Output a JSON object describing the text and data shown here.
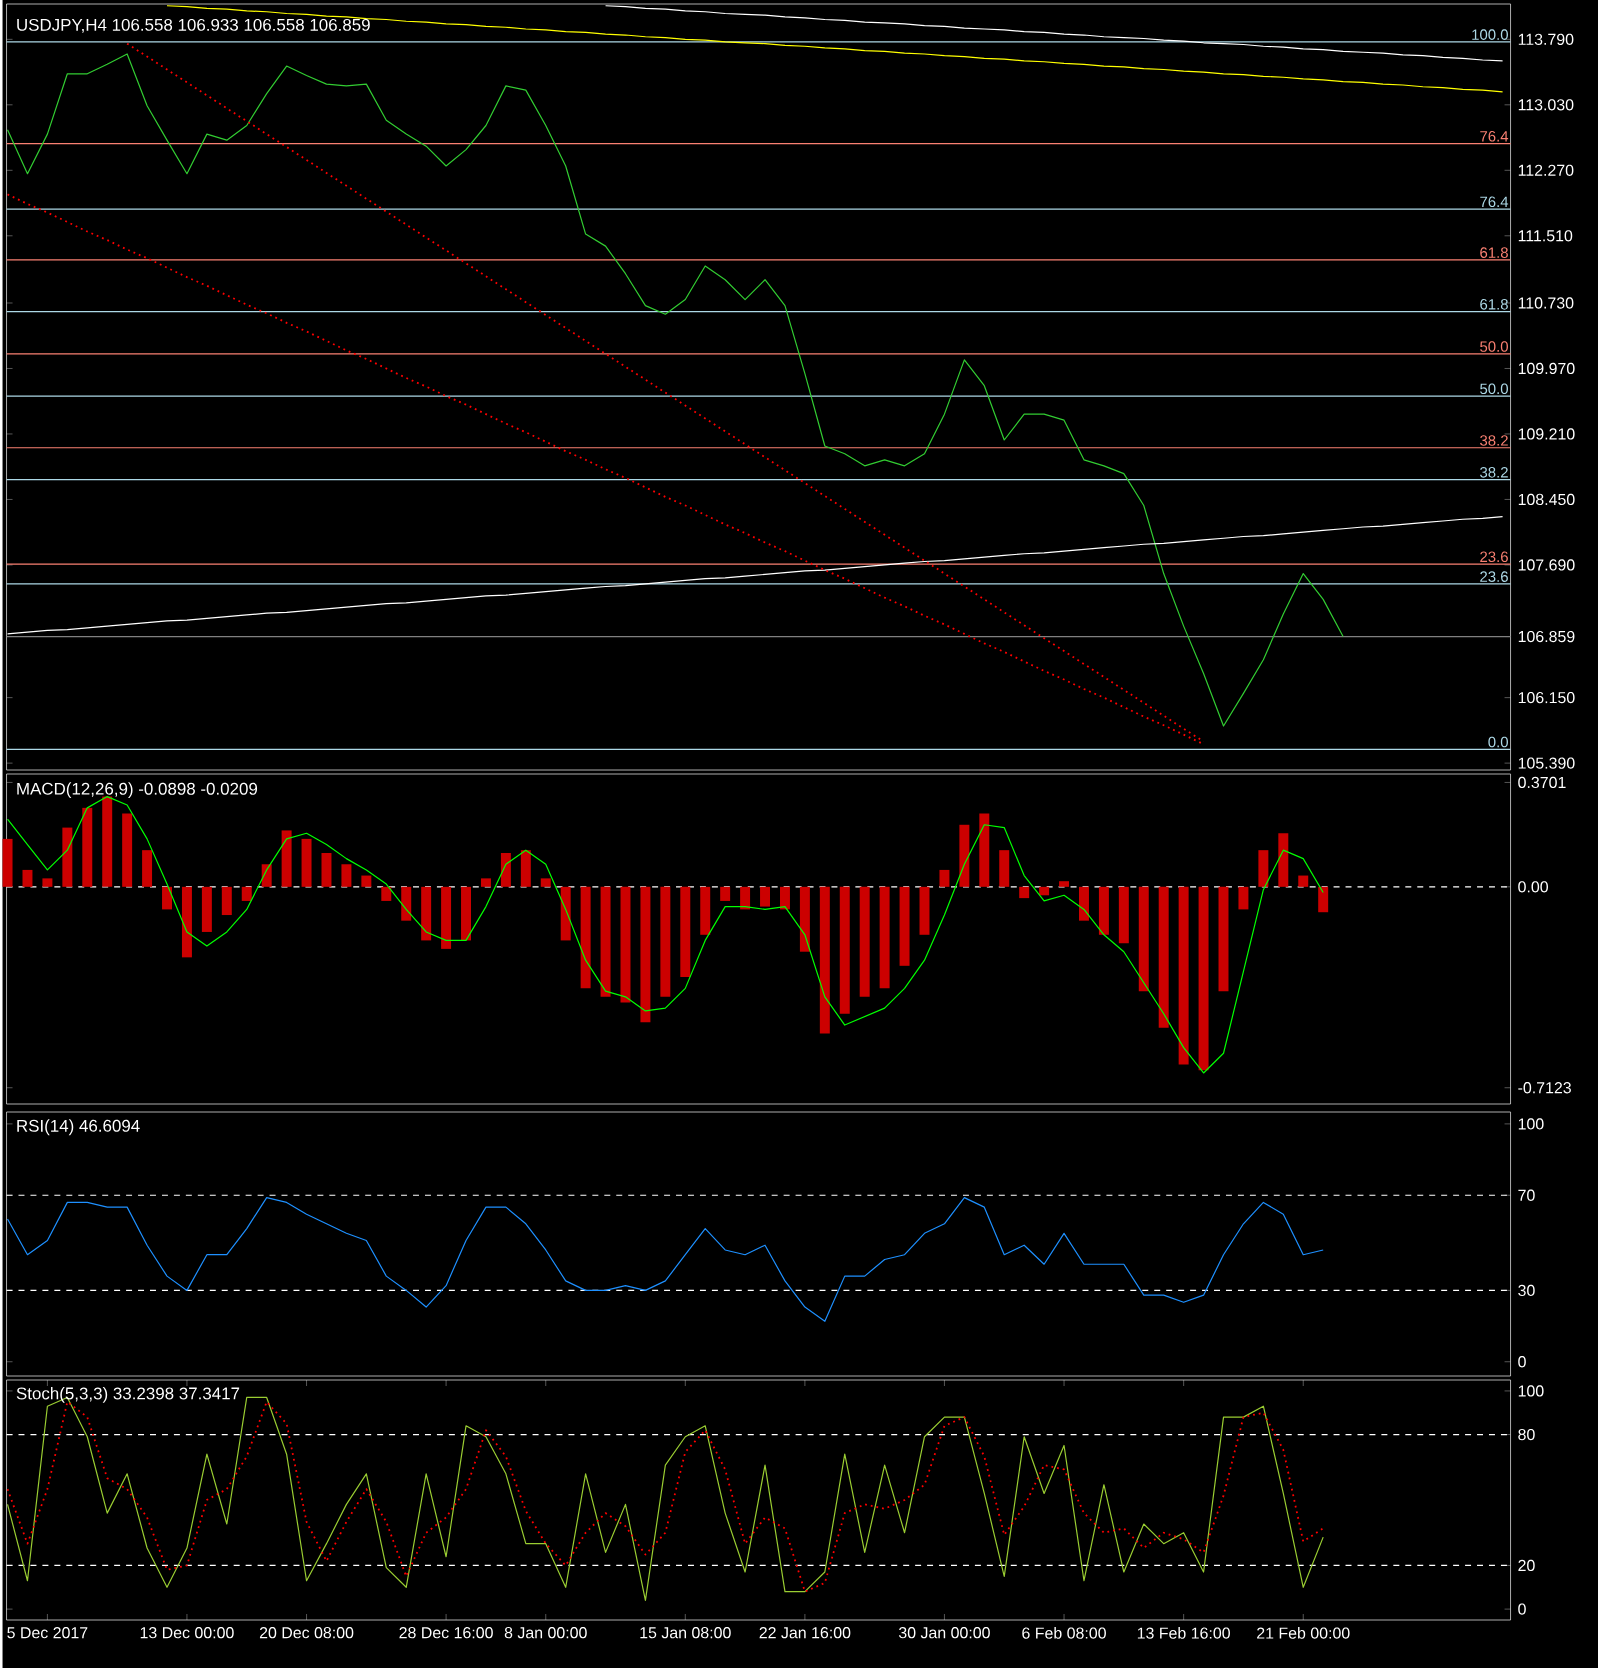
{
  "chart_data": [
    {
      "type": "line",
      "title": "USDJPY,H4  106.558 106.933 106.558 106.859",
      "ylim": [
        105.31,
        114.2
      ],
      "tick_labels": "y",
      "marker": "none",
      "categories": [
        null,
        null,
        null,
        null,
        null,
        null,
        null,
        null,
        null,
        null,
        null,
        null,
        null,
        null,
        null,
        null,
        null,
        null,
        null,
        null,
        null,
        null,
        null,
        null,
        null,
        null,
        null,
        null,
        null,
        null,
        null,
        null,
        null,
        null,
        null,
        null,
        null,
        null,
        null,
        null,
        null,
        null,
        null,
        null,
        null,
        null,
        null,
        null,
        null,
        null,
        null,
        null,
        null,
        null,
        null,
        null,
        null,
        null,
        null,
        null,
        null,
        null,
        null,
        null,
        null,
        null,
        null,
        null,
        null,
        null,
        null,
        null,
        null,
        null,
        null,
        null
      ],
      "yticks": [
        {
          "value": 113.79,
          "label": "113.790"
        },
        {
          "value": 113.03,
          "label": "113.030"
        },
        {
          "value": 112.27,
          "label": "112.270"
        },
        {
          "value": 111.51,
          "label": "111.510"
        },
        {
          "value": 110.73,
          "label": "110.730"
        },
        {
          "value": 109.97,
          "label": "109.970"
        },
        {
          "value": 109.21,
          "label": "109.210"
        },
        {
          "value": 108.45,
          "label": "108.450"
        },
        {
          "value": 107.69,
          "label": "107.690"
        },
        {
          "value": 106.859,
          "label": "106.859"
        },
        {
          "value": 106.15,
          "label": "106.150"
        },
        {
          "value": 105.39,
          "label": "105.390"
        }
      ],
      "ref_lines": [
        {
          "axis": "y",
          "value": 113.76,
          "color": "#add8e6",
          "line_style": "solid"
        },
        {
          "axis": "y",
          "value": 112.58,
          "color": "#fa8072",
          "line_style": "solid"
        },
        {
          "axis": "y",
          "value": 111.82,
          "color": "#add8e6",
          "line_style": "solid"
        },
        {
          "axis": "y",
          "value": 111.23,
          "color": "#fa8072",
          "line_style": "solid"
        },
        {
          "axis": "y",
          "value": 110.63,
          "color": "#add8e6",
          "line_style": "solid"
        },
        {
          "axis": "y",
          "value": 110.14,
          "color": "#fa8072",
          "line_style": "solid"
        },
        {
          "axis": "y",
          "value": 109.65,
          "color": "#add8e6",
          "line_style": "solid"
        },
        {
          "axis": "y",
          "value": 109.05,
          "color": "#fa8072",
          "line_style": "solid"
        },
        {
          "axis": "y",
          "value": 108.68,
          "color": "#add8e6",
          "line_style": "solid"
        },
        {
          "axis": "y",
          "value": 107.7,
          "color": "#fa8072",
          "line_style": "solid"
        },
        {
          "axis": "y",
          "value": 107.47,
          "color": "#add8e6",
          "line_style": "solid"
        },
        {
          "axis": "y",
          "value": 106.859,
          "color": "#808080",
          "line_style": "solid"
        },
        {
          "axis": "y",
          "value": 105.55,
          "color": "#add8e6",
          "line_style": "solid"
        }
      ],
      "annotations": [
        {
          "text": "100.0",
          "y": 113.76
        },
        {
          "text": "76.4",
          "y": 112.58
        },
        {
          "text": "76.4",
          "y": 111.82
        },
        {
          "text": "61.8",
          "y": 111.23
        },
        {
          "text": "61.8",
          "y": 110.63
        },
        {
          "text": "50.0",
          "y": 110.14
        },
        {
          "text": "50.0",
          "y": 109.65
        },
        {
          "text": "38.2",
          "y": 109.05
        },
        {
          "text": "38.2",
          "y": 108.68
        },
        {
          "text": "23.6",
          "y": 107.7
        },
        {
          "text": "23.6",
          "y": 107.47
        },
        {
          "text": "0.0",
          "y": 105.55
        }
      ],
      "series": [
        {
          "color": "#32cd32",
          "values": [
            112.74,
            112.23,
            112.69,
            113.39,
            113.39,
            113.5,
            113.62,
            113.02,
            112.62,
            112.23,
            112.69,
            112.62,
            112.79,
            113.16,
            113.48,
            113.37,
            113.27,
            113.25,
            113.27,
            112.85,
            112.69,
            112.55,
            112.32,
            112.51,
            112.79,
            113.25,
            113.2,
            112.79,
            112.32,
            111.53,
            111.39,
            111.07,
            110.7,
            110.6,
            110.77,
            111.16,
            111.0,
            110.77,
            111.0,
            110.7,
            109.91,
            109.07,
            108.98,
            108.84,
            108.91,
            108.84,
            108.98,
            109.44,
            110.07,
            109.77,
            109.14,
            109.44,
            109.44,
            109.37,
            108.91,
            108.84,
            108.75,
            108.38,
            107.59,
            106.98,
            106.43,
            105.82,
            106.2,
            106.59,
            107.12,
            107.59,
            107.29,
            106.86,
            null,
            null,
            null,
            null,
            null,
            null,
            null,
            null
          ]
        },
        {
          "color": "#ffff00",
          "line_style": "solid",
          "values": [
            null,
            null,
            null,
            null,
            null,
            null,
            null,
            null,
            114.18,
            114.17,
            114.15,
            114.14,
            114.12,
            114.11,
            114.09,
            114.08,
            114.06,
            114.05,
            114.03,
            114.02,
            114.0,
            113.99,
            113.97,
            113.96,
            113.94,
            113.93,
            113.91,
            113.9,
            113.88,
            113.87,
            113.85,
            113.84,
            113.82,
            113.81,
            113.79,
            113.78,
            113.76,
            113.75,
            113.74,
            113.72,
            113.71,
            113.69,
            113.68,
            113.66,
            113.65,
            113.63,
            113.62,
            113.6,
            113.59,
            113.57,
            113.56,
            113.54,
            113.53,
            113.51,
            113.5,
            113.48,
            113.47,
            113.45,
            113.44,
            113.42,
            113.41,
            113.39,
            113.38,
            113.36,
            113.35,
            113.33,
            113.32,
            113.3,
            113.29,
            113.27,
            113.26,
            113.24,
            113.23,
            113.21,
            113.2,
            113.18
          ]
        },
        {
          "color": "#ffffff",
          "line_style": "solid",
          "values": [
            null,
            null,
            null,
            null,
            null,
            null,
            null,
            null,
            null,
            null,
            null,
            null,
            null,
            null,
            null,
            null,
            null,
            null,
            null,
            null,
            null,
            null,
            null,
            null,
            null,
            null,
            null,
            null,
            null,
            null,
            114.18,
            114.17,
            114.15,
            114.14,
            114.12,
            114.11,
            114.09,
            114.08,
            114.07,
            114.05,
            114.04,
            114.02,
            114.01,
            113.99,
            113.98,
            113.97,
            113.95,
            113.94,
            113.92,
            113.91,
            113.9,
            113.88,
            113.87,
            113.85,
            113.84,
            113.82,
            113.81,
            113.8,
            113.78,
            113.77,
            113.75,
            113.74,
            113.73,
            113.71,
            113.7,
            113.68,
            113.67,
            113.65,
            113.64,
            113.63,
            113.61,
            113.6,
            113.58,
            113.57,
            113.55,
            113.54
          ]
        },
        {
          "color": "#ffffff",
          "line_style": "solid",
          "values": [
            106.89,
            106.91,
            106.93,
            106.94,
            106.96,
            106.98,
            107.0,
            107.02,
            107.04,
            107.05,
            107.07,
            107.09,
            107.11,
            107.13,
            107.14,
            107.16,
            107.18,
            107.2,
            107.22,
            107.24,
            107.25,
            107.27,
            107.29,
            107.31,
            107.33,
            107.34,
            107.36,
            107.38,
            107.4,
            107.42,
            107.44,
            107.45,
            107.47,
            107.49,
            107.51,
            107.53,
            107.54,
            107.56,
            107.58,
            107.6,
            107.62,
            107.63,
            107.65,
            107.67,
            107.69,
            107.71,
            107.73,
            107.74,
            107.76,
            107.78,
            107.8,
            107.82,
            107.83,
            107.85,
            107.87,
            107.89,
            107.91,
            107.93,
            107.94,
            107.96,
            107.98,
            108.0,
            108.02,
            108.03,
            108.05,
            108.07,
            108.09,
            108.11,
            108.13,
            108.14,
            108.16,
            108.18,
            108.2,
            108.22,
            108.23,
            108.25
          ]
        },
        {
          "color": "#ff0000",
          "line_style": "dotted",
          "values": [
            null,
            null,
            null,
            null,
            null,
            null,
            113.74,
            113.59,
            113.44,
            113.29,
            113.14,
            112.99,
            112.84,
            112.69,
            112.54,
            112.39,
            112.24,
            112.09,
            111.94,
            111.79,
            111.64,
            111.49,
            111.34,
            111.19,
            111.04,
            110.89,
            110.74,
            110.59,
            110.44,
            110.29,
            110.14,
            109.99,
            109.84,
            109.69,
            109.54,
            109.39,
            109.24,
            109.09,
            108.94,
            108.79,
            108.64,
            108.49,
            108.34,
            108.19,
            108.04,
            107.89,
            107.74,
            107.59,
            107.44,
            107.29,
            107.14,
            106.99,
            106.84,
            106.69,
            106.54,
            106.39,
            106.24,
            106.09,
            105.94,
            105.79,
            105.64,
            null,
            null,
            null,
            null,
            null,
            null,
            null,
            null,
            null,
            null,
            null,
            null,
            null,
            null,
            null
          ]
        },
        {
          "color": "#ff0000",
          "line_style": "dotted",
          "values": [
            111.99,
            111.88,
            111.78,
            111.67,
            111.56,
            111.46,
            111.35,
            111.25,
            111.14,
            111.03,
            110.93,
            110.82,
            110.71,
            110.61,
            110.5,
            110.4,
            110.29,
            110.18,
            110.08,
            109.97,
            109.86,
            109.76,
            109.65,
            109.55,
            109.44,
            109.33,
            109.23,
            109.12,
            109.01,
            108.91,
            108.8,
            108.7,
            108.59,
            108.48,
            108.38,
            108.27,
            108.16,
            108.06,
            107.95,
            107.85,
            107.74,
            107.63,
            107.53,
            107.42,
            107.31,
            107.21,
            107.1,
            107.0,
            106.89,
            106.78,
            106.68,
            106.57,
            106.46,
            106.36,
            106.25,
            106.15,
            106.04,
            105.93,
            105.83,
            105.72,
            105.61,
            null,
            null,
            null,
            null,
            null,
            null,
            null,
            null,
            null,
            null,
            null,
            null,
            null,
            null,
            null
          ]
        }
      ]
    },
    {
      "type": "bar",
      "title": "MACD(12,26,9) -0.0898 -0.0209",
      "ylim": [
        -0.77,
        0.4
      ],
      "tick_labels": "y",
      "categories": [
        null,
        null,
        null,
        null,
        null,
        null,
        null,
        null,
        null,
        null,
        null,
        null,
        null,
        null,
        null,
        null,
        null,
        null,
        null,
        null,
        null,
        null,
        null,
        null,
        null,
        null,
        null,
        null,
        null,
        null,
        null,
        null,
        null,
        null,
        null,
        null,
        null,
        null,
        null,
        null,
        null,
        null,
        null,
        null,
        null,
        null,
        null,
        null,
        null,
        null,
        null,
        null,
        null,
        null,
        null,
        null,
        null,
        null,
        null,
        null,
        null,
        null,
        null,
        null,
        null,
        null,
        null,
        null,
        null,
        null,
        null,
        null,
        null,
        null,
        null,
        null
      ],
      "yticks": [
        0.3701,
        {
          "value": 0,
          "label": "0.00"
        },
        -0.7123
      ],
      "ref_lines": [
        {
          "axis": "y",
          "value": 0,
          "color": "#ffffff",
          "line_style": "dashed"
        }
      ],
      "series": [
        {
          "color": "#cc0000",
          "values": [
            0.17,
            0.06,
            0.03,
            0.21,
            0.28,
            0.32,
            0.26,
            0.13,
            -0.08,
            -0.25,
            -0.16,
            -0.1,
            -0.05,
            0.08,
            0.2,
            0.17,
            0.12,
            0.08,
            0.04,
            -0.05,
            -0.12,
            -0.19,
            -0.22,
            -0.19,
            0.03,
            0.12,
            0.13,
            0.03,
            -0.19,
            -0.36,
            -0.39,
            -0.41,
            -0.48,
            -0.39,
            -0.32,
            -0.17,
            -0.05,
            -0.08,
            -0.07,
            -0.08,
            -0.23,
            -0.52,
            -0.45,
            -0.39,
            -0.36,
            -0.28,
            -0.17,
            0.06,
            0.22,
            0.26,
            0.13,
            -0.04,
            -0.03,
            0.02,
            -0.12,
            -0.17,
            -0.2,
            -0.37,
            -0.5,
            -0.63,
            -0.65,
            -0.37,
            -0.08,
            0.13,
            0.19,
            0.04,
            -0.09,
            null,
            null,
            null,
            null,
            null,
            null,
            null,
            null,
            null
          ]
        },
        {
          "type": "line",
          "color": "#00ff00",
          "line_style": "solid",
          "values": [
            0.24,
            0.15,
            0.06,
            0.13,
            0.28,
            0.32,
            0.29,
            0.17,
            0.01,
            -0.16,
            -0.21,
            -0.16,
            -0.08,
            0.06,
            0.17,
            0.19,
            0.15,
            0.1,
            0.06,
            0.01,
            -0.08,
            -0.16,
            -0.19,
            -0.19,
            -0.07,
            0.08,
            0.13,
            0.08,
            -0.08,
            -0.26,
            -0.37,
            -0.39,
            -0.44,
            -0.43,
            -0.36,
            -0.19,
            -0.07,
            -0.07,
            -0.08,
            -0.07,
            -0.17,
            -0.39,
            -0.49,
            -0.46,
            -0.43,
            -0.36,
            -0.26,
            -0.1,
            0.08,
            0.22,
            0.21,
            0.04,
            -0.05,
            -0.03,
            -0.08,
            -0.17,
            -0.23,
            -0.34,
            -0.45,
            -0.57,
            -0.66,
            -0.59,
            -0.3,
            -0.01,
            0.13,
            0.1,
            -0.02,
            null,
            null,
            null,
            null,
            null,
            null,
            null,
            null,
            null
          ]
        }
      ]
    },
    {
      "type": "line",
      "title": "RSI(14) 46.6094",
      "ylim": [
        -6,
        105
      ],
      "tick_labels": "y",
      "marker": "none",
      "categories": [
        null,
        null,
        null,
        null,
        null,
        null,
        null,
        null,
        null,
        null,
        null,
        null,
        null,
        null,
        null,
        null,
        null,
        null,
        null,
        null,
        null,
        null,
        null,
        null,
        null,
        null,
        null,
        null,
        null,
        null,
        null,
        null,
        null,
        null,
        null,
        null,
        null,
        null,
        null,
        null,
        null,
        null,
        null,
        null,
        null,
        null,
        null,
        null,
        null,
        null,
        null,
        null,
        null,
        null,
        null,
        null,
        null,
        null,
        null,
        null,
        null,
        null,
        null,
        null,
        null,
        null,
        null,
        null,
        null,
        null,
        null,
        null,
        null,
        null,
        null,
        null
      ],
      "yticks": [
        100,
        70,
        30,
        0
      ],
      "ref_lines": [
        {
          "axis": "y",
          "value": 70,
          "color": "#ffffff",
          "line_style": "dashed"
        },
        {
          "axis": "y",
          "value": 30,
          "color": "#ffffff",
          "line_style": "dashed"
        }
      ],
      "series": [
        {
          "color": "#1e90ff",
          "line_style": "solid",
          "values": [
            60,
            45,
            51,
            67,
            67,
            65,
            65,
            49,
            36,
            30,
            45,
            45,
            56,
            69,
            67,
            62,
            58,
            54,
            51,
            36,
            30,
            23,
            32,
            51,
            65,
            65,
            58,
            47,
            34,
            30,
            30,
            32,
            30,
            34,
            45,
            56,
            47,
            45,
            49,
            34,
            23,
            17,
            36,
            36,
            43,
            45,
            54,
            58,
            69,
            65,
            45,
            49,
            41,
            54,
            41,
            41,
            41,
            28,
            28,
            25,
            28,
            45,
            58,
            67,
            62,
            45,
            47,
            null,
            null,
            null,
            null,
            null,
            null,
            null,
            null,
            null
          ]
        }
      ]
    },
    {
      "type": "line",
      "title": "Stoch(5,3,3) 33.2398 37.3417",
      "ylim": [
        -5,
        105
      ],
      "marker": "none",
      "categories": [
        null,
        null,
        "5 Dec 2017",
        null,
        null,
        null,
        null,
        null,
        null,
        "13 Dec 00:00",
        null,
        null,
        null,
        null,
        null,
        "20 Dec 08:00",
        null,
        null,
        null,
        null,
        null,
        null,
        "28 Dec 16:00",
        null,
        null,
        null,
        null,
        "8 Jan 00:00",
        null,
        null,
        null,
        null,
        null,
        null,
        "15 Jan 08:00",
        null,
        null,
        null,
        null,
        null,
        "22 Jan 16:00",
        null,
        null,
        null,
        null,
        null,
        null,
        "30 Jan 00:00",
        null,
        null,
        null,
        null,
        null,
        "6 Feb 08:00",
        null,
        null,
        null,
        null,
        null,
        "13 Feb 16:00",
        null,
        null,
        null,
        null,
        null,
        "21 Feb 00:00",
        null,
        null,
        null,
        null,
        null,
        null,
        null,
        null,
        null,
        null
      ],
      "yticks": [
        100,
        80,
        20,
        0
      ],
      "ref_lines": [
        {
          "axis": "y",
          "value": 80,
          "color": "#ffffff",
          "line_style": "dashed"
        },
        {
          "axis": "y",
          "value": 20,
          "color": "#ffffff",
          "line_style": "dashed"
        }
      ],
      "series": [
        {
          "color": "#9acd32",
          "line_style": "solid",
          "values": [
            48,
            13,
            93,
            97,
            79,
            44,
            62,
            28,
            10,
            28,
            71,
            39,
            97,
            97,
            71,
            13,
            30,
            48,
            62,
            19,
            10,
            62,
            24,
            84,
            79,
            62,
            30,
            30,
            10,
            62,
            26,
            48,
            4,
            66,
            79,
            84,
            44,
            17,
            66,
            8,
            8,
            17,
            71,
            26,
            66,
            35,
            79,
            88,
            88,
            53,
            15,
            79,
            53,
            75,
            13,
            57,
            17,
            39,
            30,
            35,
            17,
            88,
            88,
            93,
            53,
            10,
            33,
            null,
            null,
            null,
            null,
            null,
            null,
            null,
            null,
            null
          ]
        },
        {
          "color": "#ff0000",
          "line_style": "dotted",
          "values": [
            55,
            30,
            55,
            95,
            88,
            60,
            55,
            42,
            18,
            20,
            50,
            55,
            70,
            95,
            85,
            40,
            22,
            40,
            55,
            40,
            15,
            35,
            42,
            55,
            82,
            70,
            45,
            30,
            20,
            35,
            44,
            38,
            25,
            35,
            72,
            82,
            64,
            30,
            42,
            37,
            8,
            12,
            44,
            48,
            46,
            50,
            57,
            84,
            88,
            70,
            34,
            47,
            66,
            64,
            44,
            35,
            37,
            28,
            35,
            32,
            26,
            52,
            88,
            90,
            73,
            31,
            37,
            null,
            null,
            null,
            null,
            null,
            null,
            null,
            null,
            null
          ]
        }
      ]
    }
  ]
}
